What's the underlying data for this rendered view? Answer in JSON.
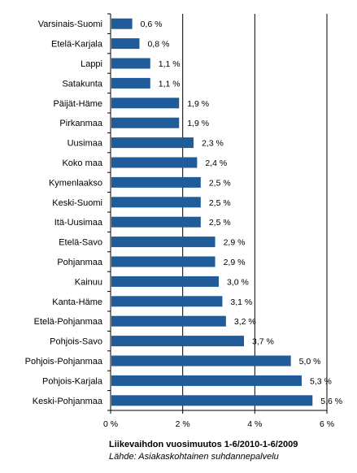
{
  "chart_data": {
    "type": "bar",
    "orientation": "horizontal",
    "categories": [
      "Varsinais-Suomi",
      "Etelä-Karjala",
      "Lappi",
      "Satakunta",
      "Päijät-Häme",
      "Pirkanmaa",
      "Uusimaa",
      "Koko maa",
      "Kymenlaakso",
      "Keski-Suomi",
      "Itä-Uusimaa",
      "Etelä-Savo",
      "Pohjanmaa",
      "Kainuu",
      "Kanta-Häme",
      "Etelä-Pohjanmaa",
      "Pohjois-Savo",
      "Pohjois-Pohjanmaa",
      "Pohjois-Karjala",
      "Keski-Pohjanmaa"
    ],
    "values": [
      0.6,
      0.8,
      1.1,
      1.1,
      1.9,
      1.9,
      2.3,
      2.4,
      2.5,
      2.5,
      2.5,
      2.9,
      2.9,
      3.0,
      3.1,
      3.2,
      3.7,
      5.0,
      5.3,
      5.6
    ],
    "value_labels": [
      "0,6 %",
      "0,8 %",
      "1,1 %",
      "1,1 %",
      "1,9 %",
      "1,9 %",
      "2,3 %",
      "2,4 %",
      "2,5 %",
      "2,5 %",
      "2,5 %",
      "2,9 %",
      "2,9 %",
      "3,0 %",
      "3,1 %",
      "3,2 %",
      "3,7 %",
      "5,0 %",
      "5,3 %",
      "5,6 %"
    ],
    "xlim": [
      0,
      6
    ],
    "xticks": [
      0,
      2,
      4,
      6
    ],
    "xtick_labels": [
      "0 %",
      "2 %",
      "4 %",
      "6 %"
    ],
    "xlabel": "Liikevaihdon vuosimuutos 1-6/2010-1-6/2009",
    "source": "Lähde: Asiakaskohtainen suhdannepalvelu",
    "grid": "vertical gridlines at major ticks",
    "legend": "none",
    "bar_color": "#1f5c99"
  }
}
